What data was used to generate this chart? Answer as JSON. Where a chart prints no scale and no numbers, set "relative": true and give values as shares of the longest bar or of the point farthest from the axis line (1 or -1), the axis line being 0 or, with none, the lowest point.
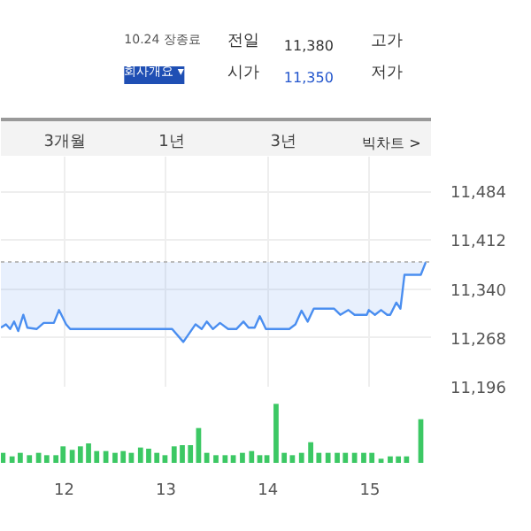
{
  "chart_data": [
    {
      "type": "other",
      "annotations": [
        "10.24 장종료",
        "회사개요 ▾",
        "전일",
        "11,380",
        "고가",
        "시가",
        "11,350",
        "저가",
        "3개월",
        "1년",
        "3년",
        "빅차트 >"
      ]
    },
    {
      "type": "line",
      "x": [
        11.38,
        11.43,
        11.47,
        11.51,
        11.55,
        11.6,
        11.64,
        11.73,
        11.8,
        11.9,
        11.95,
        12.02,
        12.06,
        13.06,
        13.17,
        13.29,
        13.35,
        13.4,
        13.46,
        13.53,
        13.61,
        13.69,
        13.76,
        13.81,
        13.87,
        13.92,
        13.98,
        14.21,
        14.27,
        14.33,
        14.39,
        14.45,
        14.65,
        14.71,
        14.79,
        14.85,
        14.97,
        14.99,
        15.05,
        15.11,
        15.17,
        15.2,
        15.26,
        15.3,
        15.34,
        15.5,
        15.55
      ],
      "series": [
        {
          "color": "#4a8ef0",
          "values": [
            11283,
            11288,
            11281,
            11292,
            11278,
            11302,
            11283,
            11281,
            11290,
            11290,
            11309,
            11288,
            11281,
            11281,
            11262,
            11288,
            11281,
            11292,
            11281,
            11290,
            11281,
            11281,
            11292,
            11283,
            11283,
            11300,
            11281,
            11281,
            11288,
            11308,
            11292,
            11311,
            11311,
            11302,
            11309,
            11302,
            11302,
            11309,
            11302,
            11309,
            11302,
            11302,
            11320,
            11311,
            11361,
            11361,
            11380
          ]
        }
      ],
      "xlim": [
        11.38,
        15.6
      ],
      "ylim": [
        11196,
        11535
      ],
      "xticks": [
        12,
        13,
        14,
        15
      ],
      "yticks": [
        {
          "value": 11196,
          "label": "11,196"
        },
        {
          "value": 11268,
          "label": "11,268"
        },
        {
          "value": 11340,
          "label": "11,340"
        },
        {
          "value": 11412,
          "label": "11,412"
        },
        {
          "value": 11484,
          "label": "11,484"
        }
      ],
      "ref_lines": [
        {
          "axis": "y",
          "value": 11380,
          "color": "#bbbbbb",
          "line_style": "dotted"
        }
      ],
      "grid": true,
      "tick_labels": "y"
    },
    {
      "type": "bar",
      "relative": true,
      "x": [
        11.4,
        11.49,
        11.57,
        11.66,
        11.75,
        11.83,
        11.92,
        11.99,
        12.08,
        12.16,
        12.24,
        12.32,
        12.41,
        12.5,
        12.58,
        12.66,
        12.75,
        12.83,
        12.91,
        12.99,
        13.08,
        13.16,
        13.24,
        13.32,
        13.4,
        13.49,
        13.58,
        13.66,
        13.75,
        13.84,
        13.92,
        13.99,
        14.08,
        14.16,
        14.24,
        14.33,
        14.42,
        14.5,
        14.59,
        14.68,
        14.76,
        14.85,
        14.94,
        15.02,
        15.11,
        15.2,
        15.28,
        15.36,
        15.5
      ],
      "series": [
        {
          "color": "#3cc864",
          "values": [
            0.17,
            0.11,
            0.17,
            0.13,
            0.17,
            0.13,
            0.13,
            0.28,
            0.22,
            0.28,
            0.33,
            0.2,
            0.2,
            0.17,
            0.2,
            0.17,
            0.26,
            0.24,
            0.17,
            0.13,
            0.28,
            0.3,
            0.3,
            0.59,
            0.17,
            0.13,
            0.13,
            0.13,
            0.17,
            0.2,
            0.13,
            0.13,
            1,
            0.17,
            0.13,
            0.17,
            0.35,
            0.17,
            0.17,
            0.17,
            0.17,
            0.17,
            0.17,
            0.17,
            0.07,
            0.11,
            0.11,
            0.11,
            0.74
          ]
        }
      ],
      "xlim": [
        11.38,
        15.6
      ],
      "xticks": [
        12,
        13,
        14,
        15
      ],
      "tick_labels": "x"
    }
  ]
}
